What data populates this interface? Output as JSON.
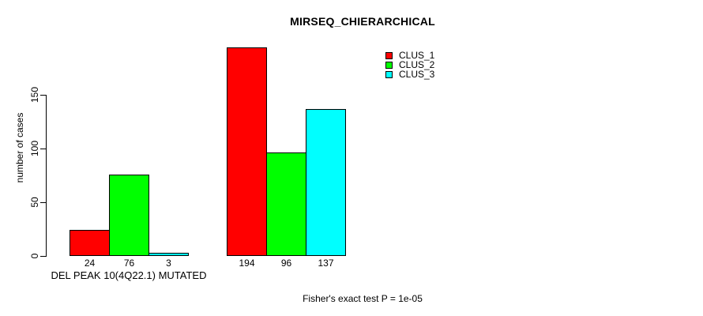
{
  "chart_data": {
    "type": "bar",
    "title": "MIRSEQ_CHIERARCHICAL",
    "ylabel": "number of cases",
    "yticks": [
      0,
      50,
      100,
      150
    ],
    "ylim": [
      0,
      150
    ],
    "grid": false,
    "legend_position": "top-right-inside",
    "bar_outline_color": "#000000",
    "series": [
      {
        "name": "CLUS_1",
        "color": "#FF0000"
      },
      {
        "name": "CLUS_2",
        "color": "#00FF00"
      },
      {
        "name": "CLUS_3",
        "color": "#00FFFF"
      }
    ],
    "groups": [
      {
        "label": "DEL PEAK 10(4Q22.1) MUTATED",
        "values": [
          24,
          76,
          3
        ]
      },
      {
        "label": "",
        "values": [
          194,
          96,
          137
        ]
      }
    ],
    "annotation": "Fisher's exact test P = 1e-05"
  }
}
